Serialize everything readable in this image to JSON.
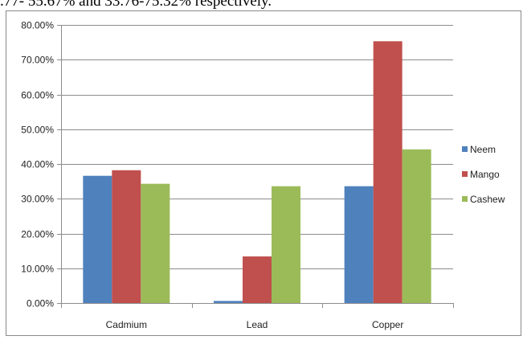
{
  "caption_fragment": ".77- 55.67% and 33.76-75.32% respectively.",
  "chart_data": {
    "type": "bar",
    "categories": [
      "Cadmium",
      "Lead",
      "Copper"
    ],
    "series": [
      {
        "name": "Neem",
        "color": "#4F81BD",
        "values": [
          36.6,
          0.6,
          33.6
        ]
      },
      {
        "name": "Mango",
        "color": "#C0504D",
        "values": [
          38.2,
          13.4,
          75.3
        ]
      },
      {
        "name": "Cashew",
        "color": "#9BBB59",
        "values": [
          34.3,
          33.6,
          44.2
        ]
      }
    ],
    "ylim": [
      0,
      80
    ],
    "yticks": [
      "0.00%",
      "10.00%",
      "20.00%",
      "30.00%",
      "40.00%",
      "50.00%",
      "60.00%",
      "70.00%",
      "80.00%"
    ],
    "grid": true,
    "legend_position": "right"
  }
}
